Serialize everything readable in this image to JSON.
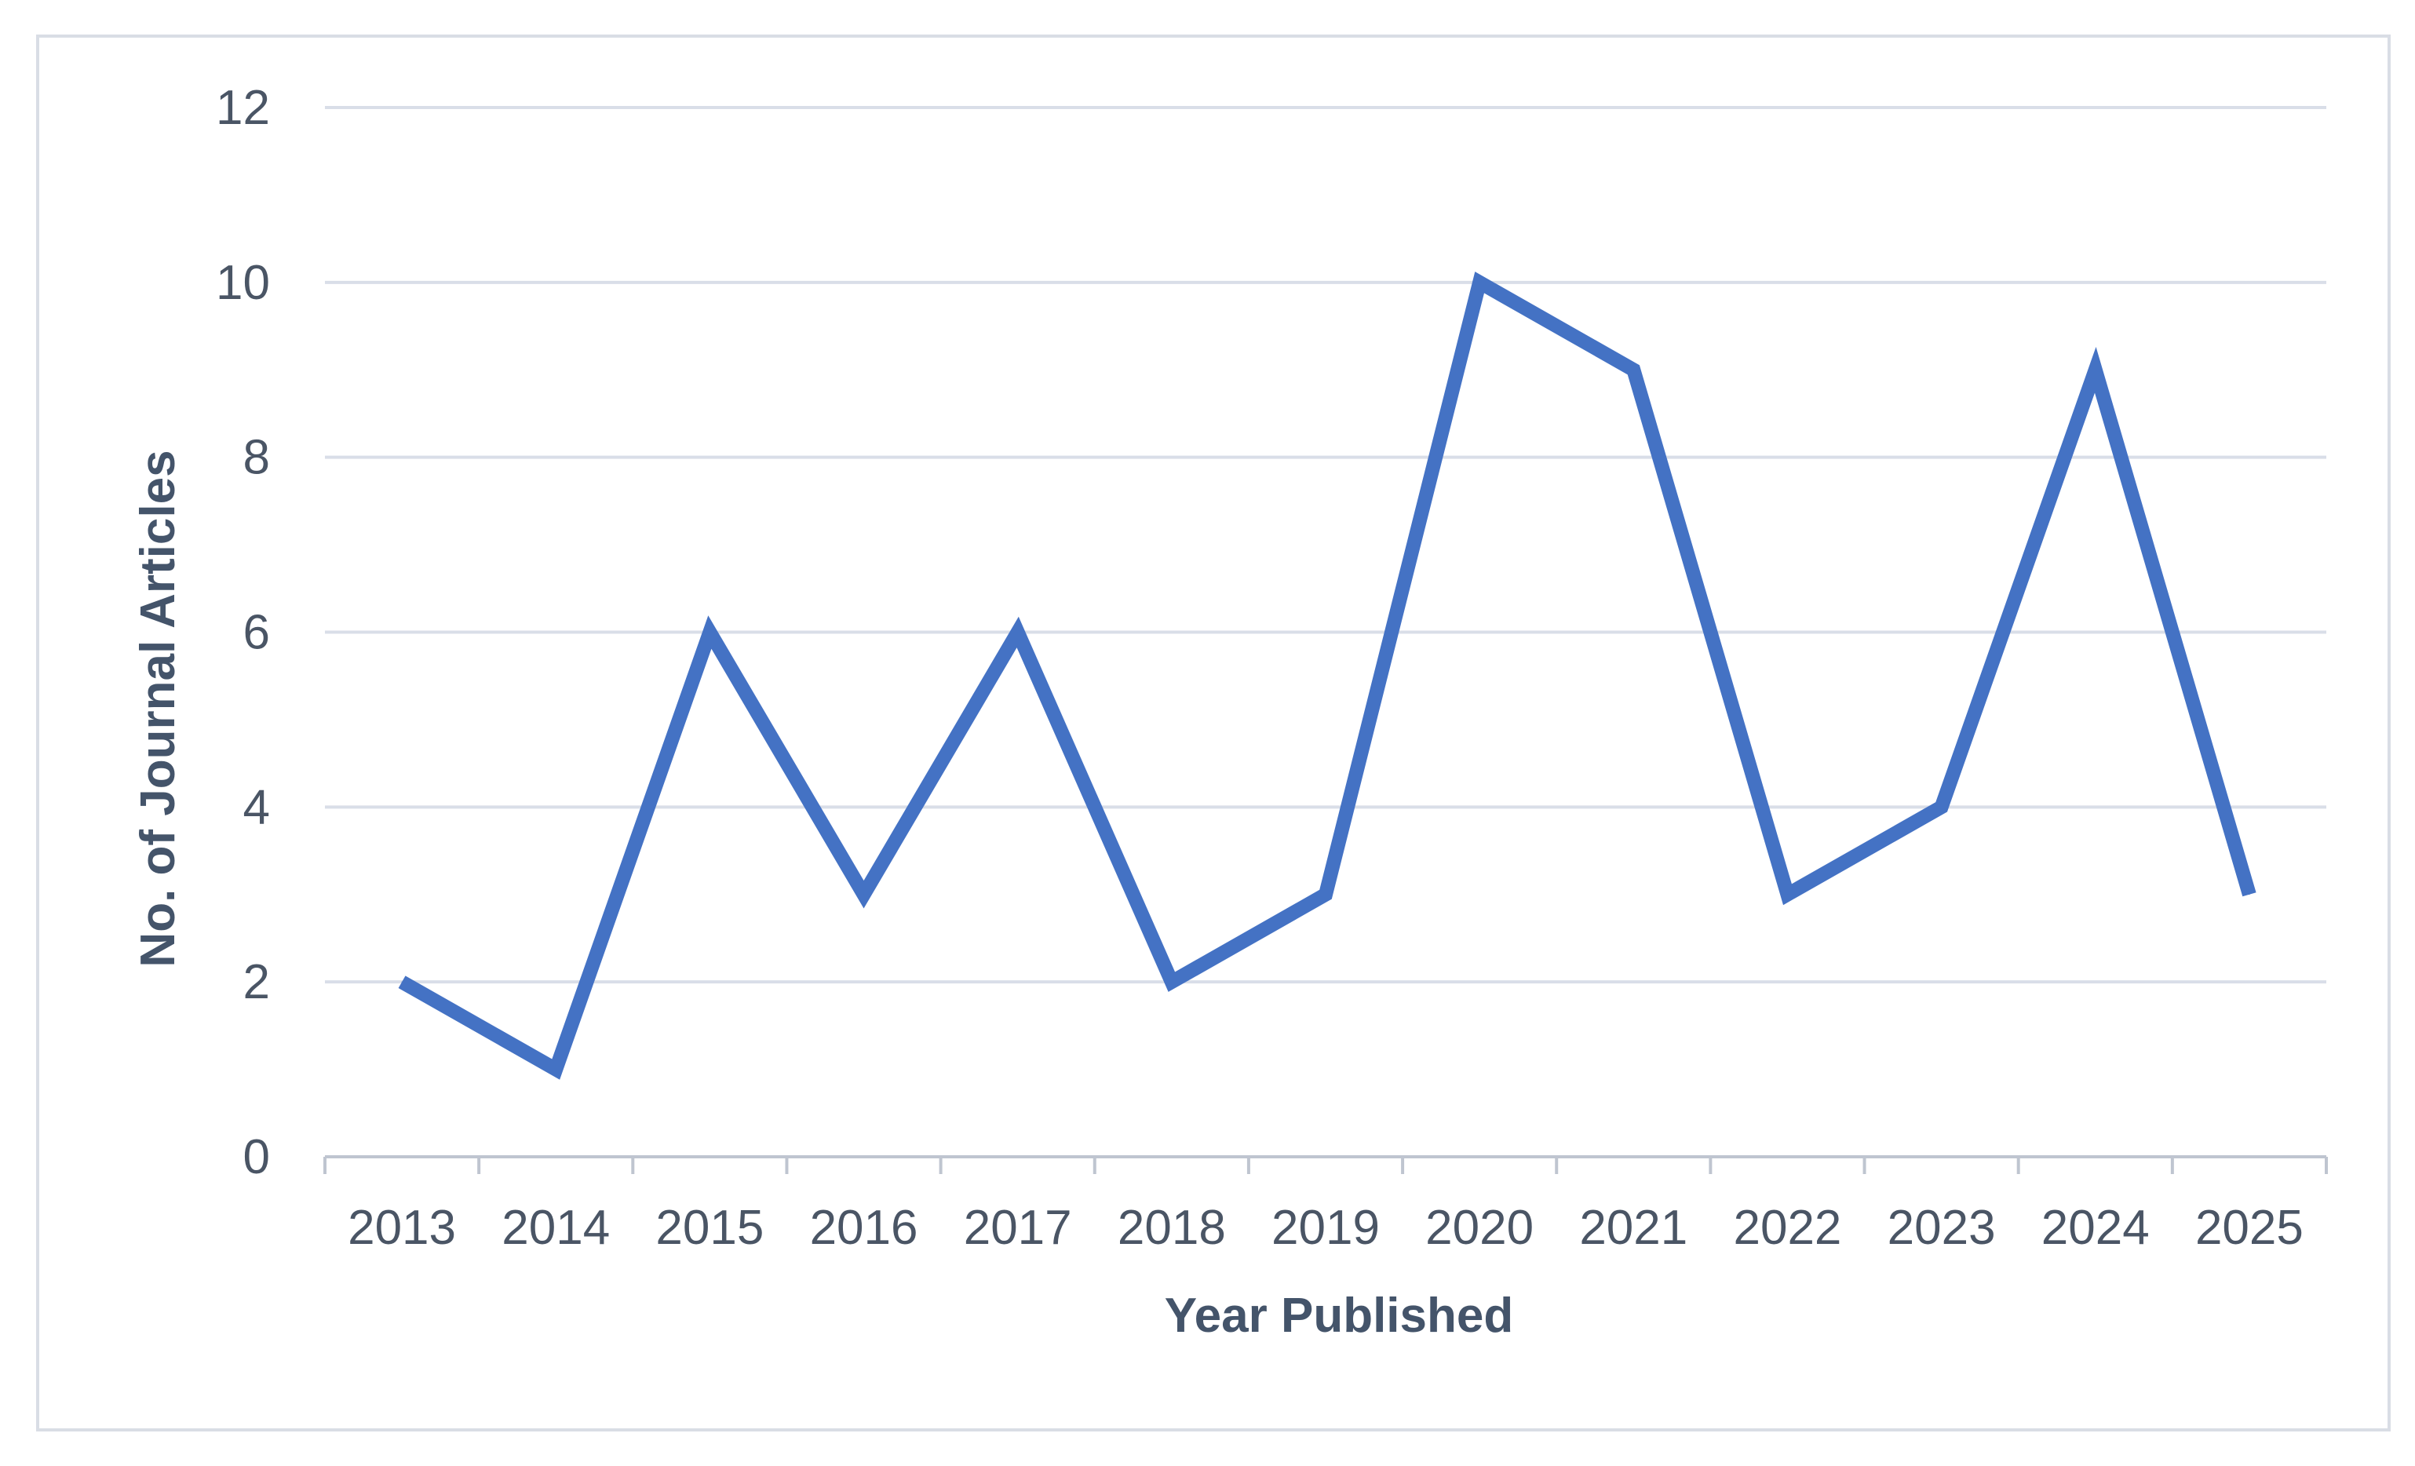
{
  "chart_data": {
    "type": "line",
    "title": "",
    "xlabel": "Year Published",
    "ylabel": "No. of Journal Articles",
    "categories": [
      "2013",
      "2014",
      "2015",
      "2016",
      "2017",
      "2018",
      "2019",
      "2020",
      "2021",
      "2022",
      "2023",
      "2024",
      "2025"
    ],
    "series": [
      {
        "values": [
          2,
          1,
          6,
          3,
          6,
          2,
          3,
          10,
          9,
          3,
          4,
          9,
          3
        ]
      }
    ],
    "ylim": [
      0,
      12
    ],
    "yticks": [
      "0",
      "2",
      "4",
      "6",
      "8",
      "10",
      "12"
    ],
    "grid": true,
    "legend": "none",
    "colors": {
      "line": "#4472c4",
      "grid": "#d9dee8",
      "axis": "#bfc5d0",
      "text": "#4a5565",
      "frame": "#d9dde5"
    }
  }
}
